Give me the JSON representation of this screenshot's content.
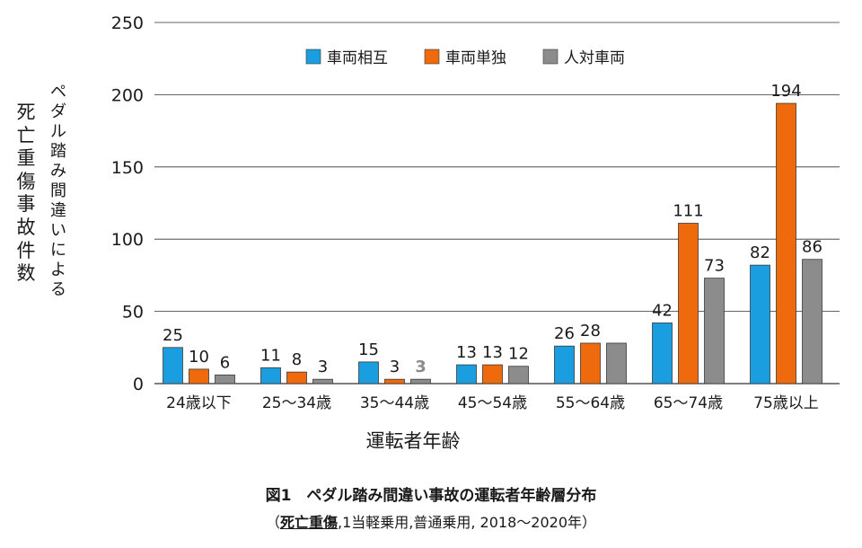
{
  "chart_data": {
    "type": "bar",
    "categories": [
      "24歳以下",
      "25～34歳",
      "35～44歳",
      "45～54歳",
      "55～64歳",
      "65～74歳",
      "75歳以上"
    ],
    "series": [
      {
        "name": "車両相互",
        "color": "#1a9ee0",
        "values": [
          25,
          11,
          15,
          13,
          26,
          42,
          82
        ],
        "labels": [
          "25",
          "11",
          "15",
          "13",
          "26",
          "42",
          "82"
        ]
      },
      {
        "name": "車両単独",
        "color": "#ee6a0c",
        "values": [
          10,
          8,
          3,
          13,
          28,
          111,
          194
        ],
        "labels": [
          "10",
          "8",
          "3",
          "13",
          "28",
          "111",
          "194"
        ]
      },
      {
        "name": "人対車両",
        "color": "#8c8c8c",
        "values": [
          6,
          3,
          3,
          12,
          28,
          73,
          86
        ],
        "labels": [
          "6",
          "3",
          "3",
          "12",
          "",
          "73",
          "86"
        ]
      }
    ],
    "highlighted_label": {
      "series": 2,
      "category": 2,
      "color": "#8c8c8c"
    },
    "yticks": [
      0,
      50,
      100,
      150,
      200,
      250
    ],
    "ylim": [
      0,
      250
    ],
    "grid": true,
    "legend": "top-center",
    "ylabel_main": "死亡重傷事故件数",
    "ylabel_sub": "ペダル踏み間違いによる",
    "xlabel": "運転者年齢"
  },
  "caption": {
    "title": "図1　ペダル踏み間違い事故の運転者年齢層分布",
    "open": "（",
    "underlined": "死亡重傷",
    "rest": ",1当軽乗用,普通乗用, 2018～2020年）"
  }
}
